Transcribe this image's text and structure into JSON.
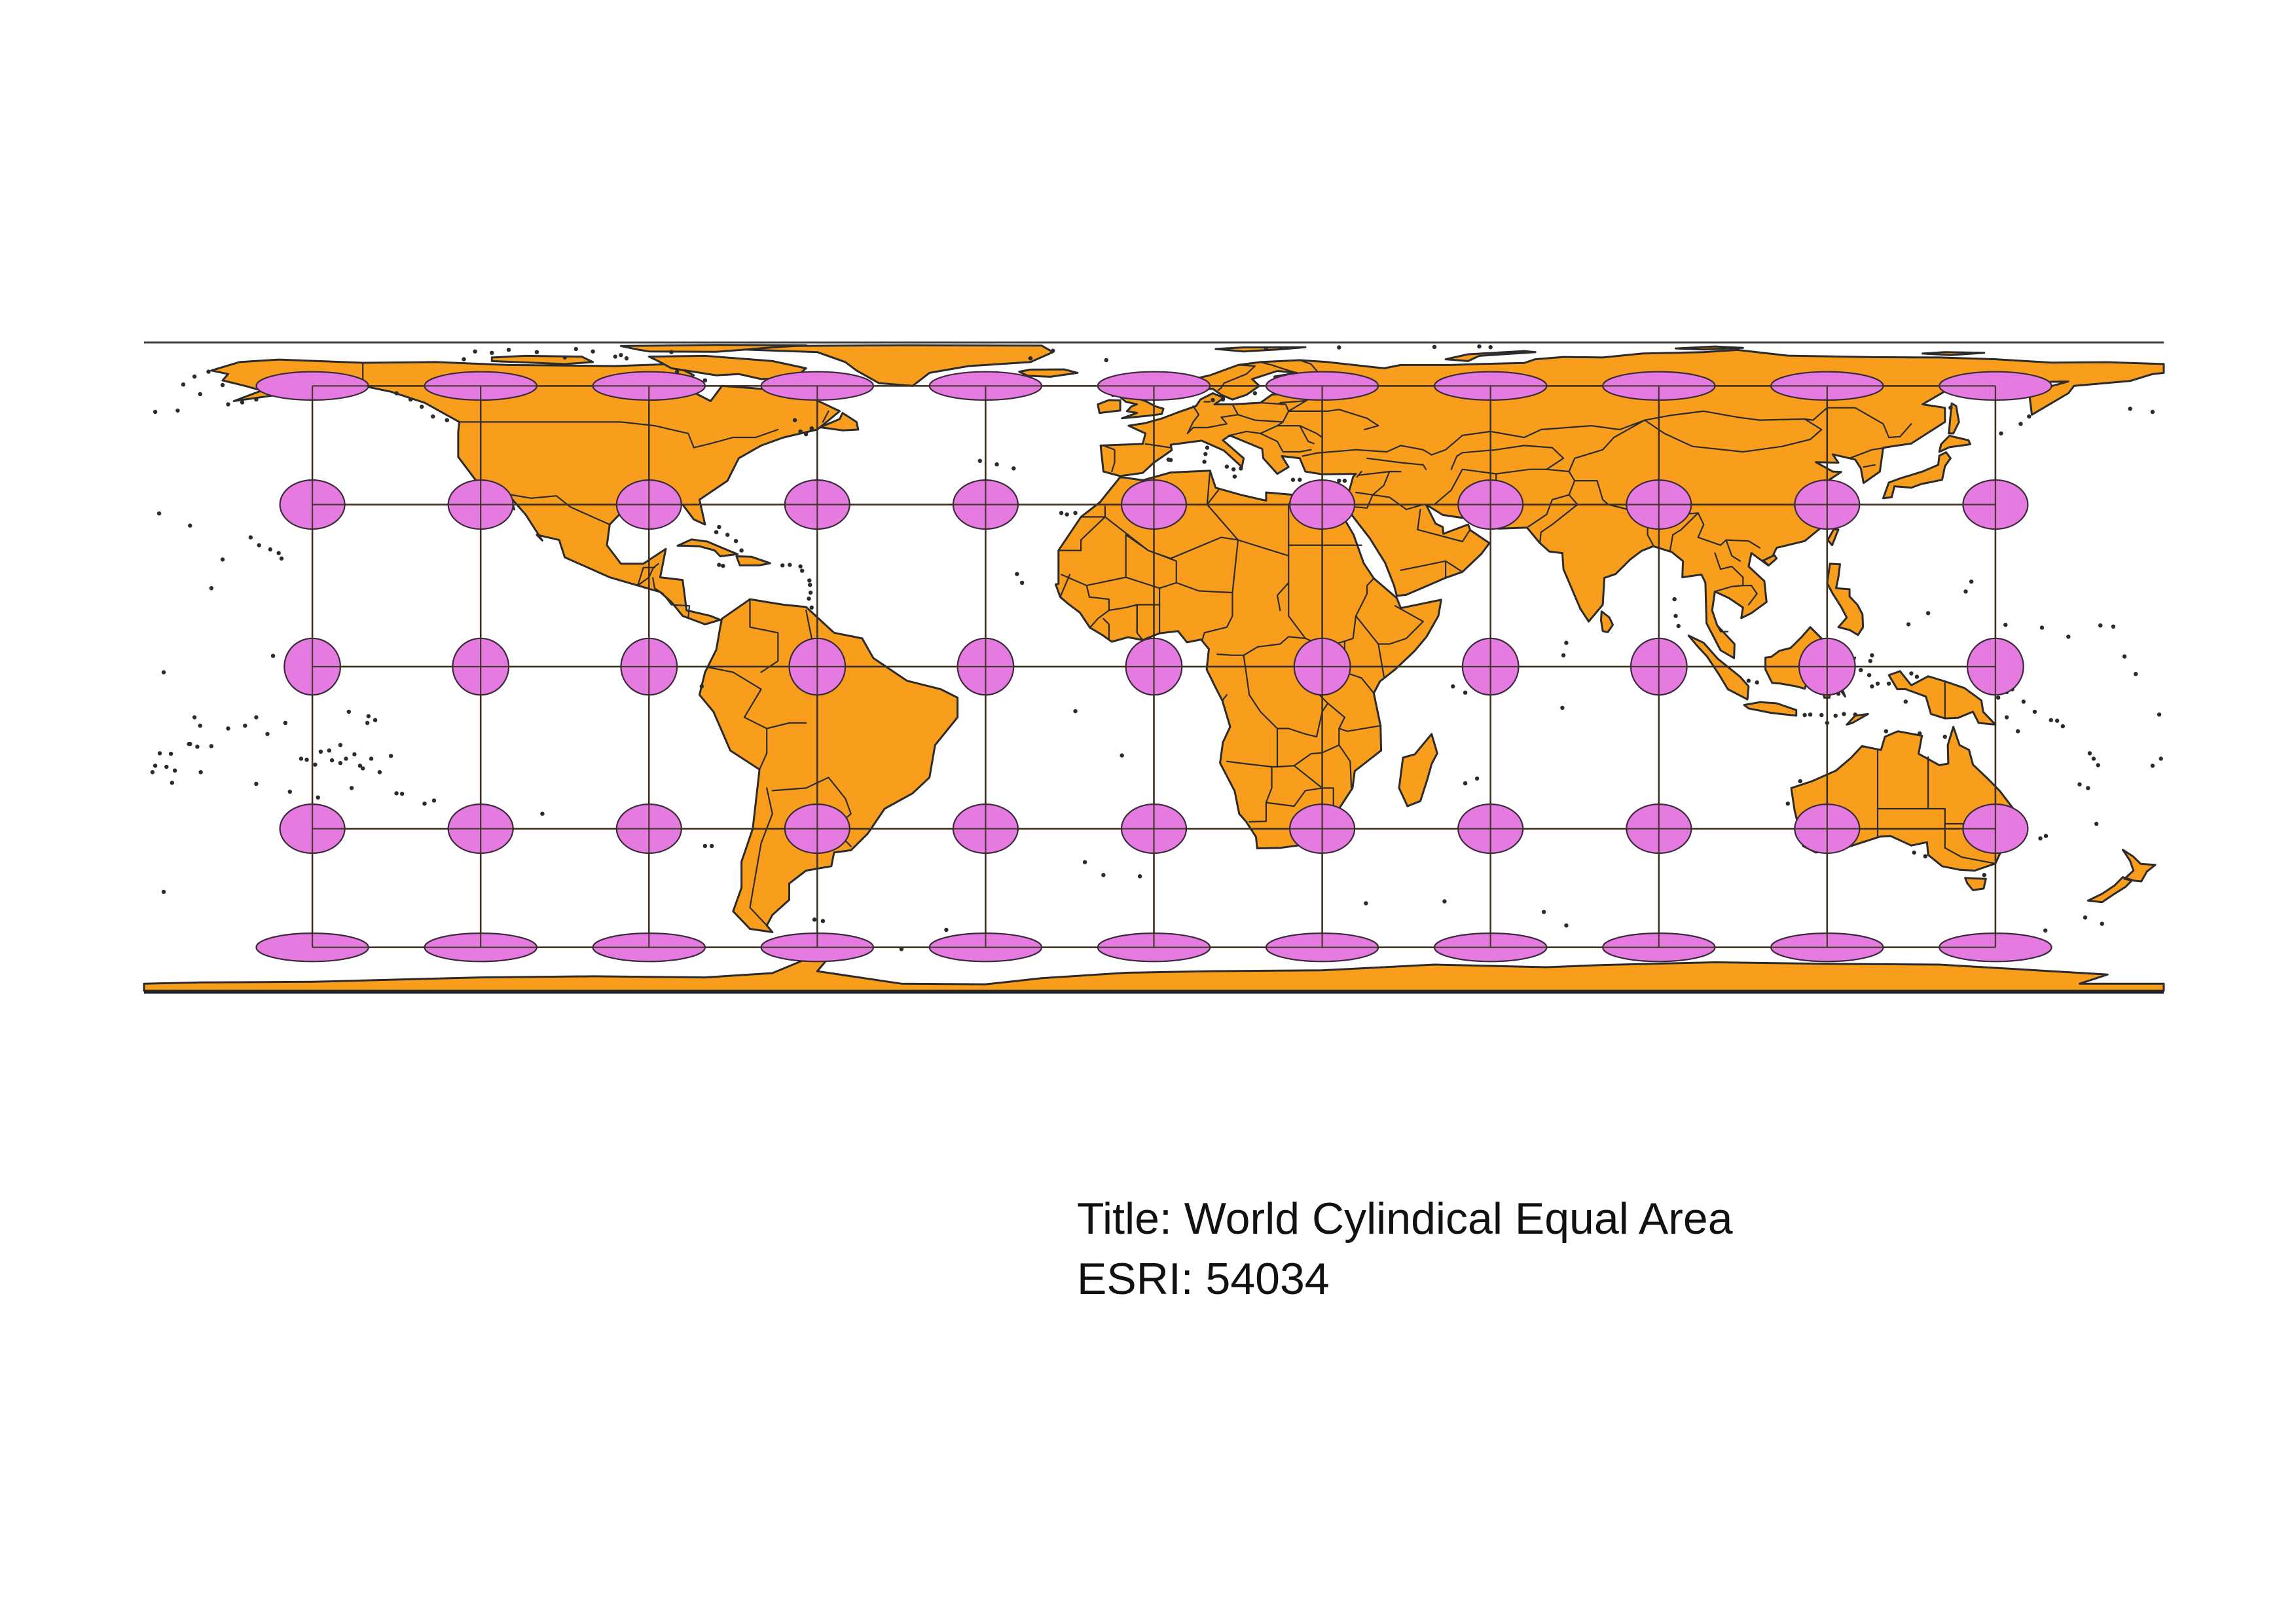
{
  "caption": {
    "title_line": "Title: World Cylindical Equal Area",
    "code_line": "ESRI: 54034"
  },
  "map_data": {
    "projection": "cylindrical equal area",
    "graticule_longitudes_deg": [
      -150,
      -120,
      -90,
      -60,
      -30,
      0,
      30,
      60,
      90,
      120,
      150
    ],
    "graticule_latitudes_deg": [
      -60,
      -30,
      0,
      30,
      60
    ],
    "indicatrix_circle_radius_deg": 5,
    "colors": {
      "land_fill": "#f99e1c",
      "land_stroke": "#2b2b2b",
      "indicatrix_fill": "#e57ae0",
      "indicatrix_stroke": "#3a2a3a",
      "graticule_stroke": "#3b3020",
      "frame_stroke": "#222222"
    }
  }
}
